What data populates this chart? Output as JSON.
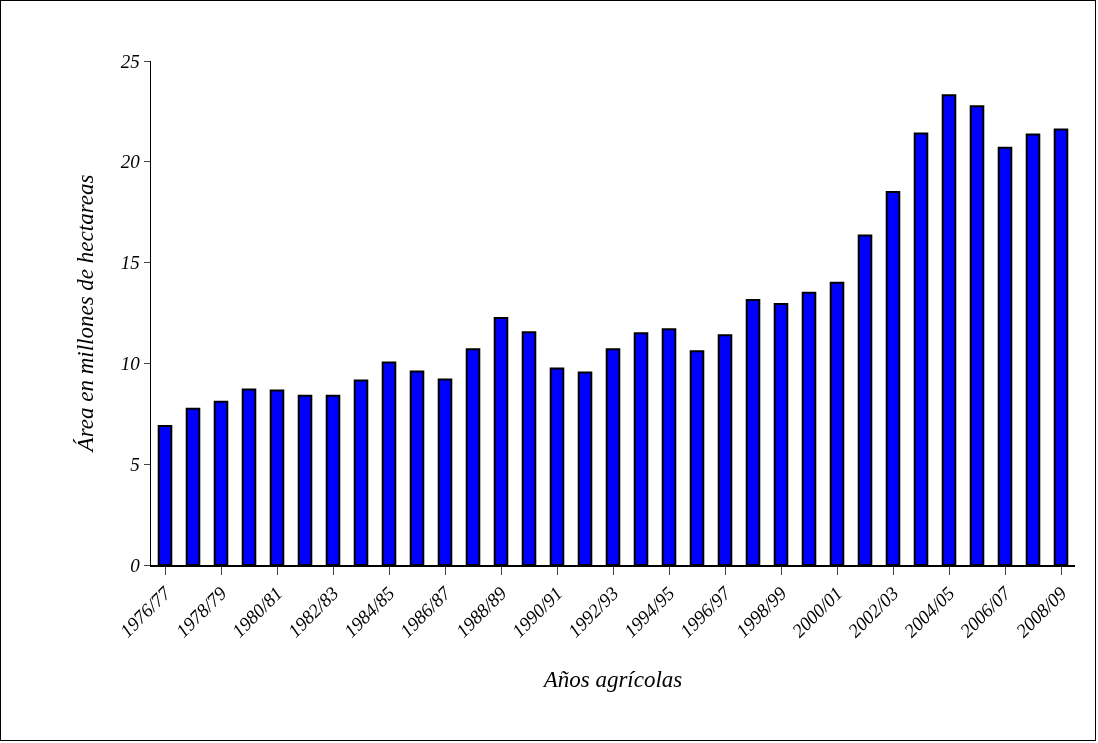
{
  "chart_data": {
    "type": "bar",
    "xlabel": "Años agrícolas",
    "ylabel": "Área en millones de hectareas",
    "categories": [
      "1976/77",
      null,
      "1978/79",
      null,
      "1980/81",
      null,
      "1982/83",
      null,
      "1984/85",
      null,
      "1986/87",
      null,
      "1988/89",
      null,
      "1990/91",
      null,
      "1992/93",
      null,
      "1994/95",
      null,
      "1996/97",
      null,
      "1998/99",
      null,
      "2000/01",
      null,
      "2002/03",
      null,
      "2004/05",
      null,
      "2006/07",
      null,
      "2008/09"
    ],
    "values": [
      6.9,
      7.75,
      8.1,
      8.7,
      8.65,
      8.4,
      8.4,
      9.15,
      10.05,
      9.6,
      9.2,
      10.7,
      12.25,
      11.55,
      9.75,
      9.55,
      10.7,
      11.5,
      11.7,
      10.6,
      11.4,
      13.15,
      12.95,
      13.5,
      14.0,
      16.35,
      18.5,
      21.4,
      23.3,
      22.75,
      20.7,
      21.35,
      21.6
    ],
    "color": "#0000ff",
    "ylim": [
      0,
      25
    ],
    "yticks": [
      0,
      5,
      10,
      15,
      20,
      25
    ],
    "grid": false,
    "legend": false
  }
}
